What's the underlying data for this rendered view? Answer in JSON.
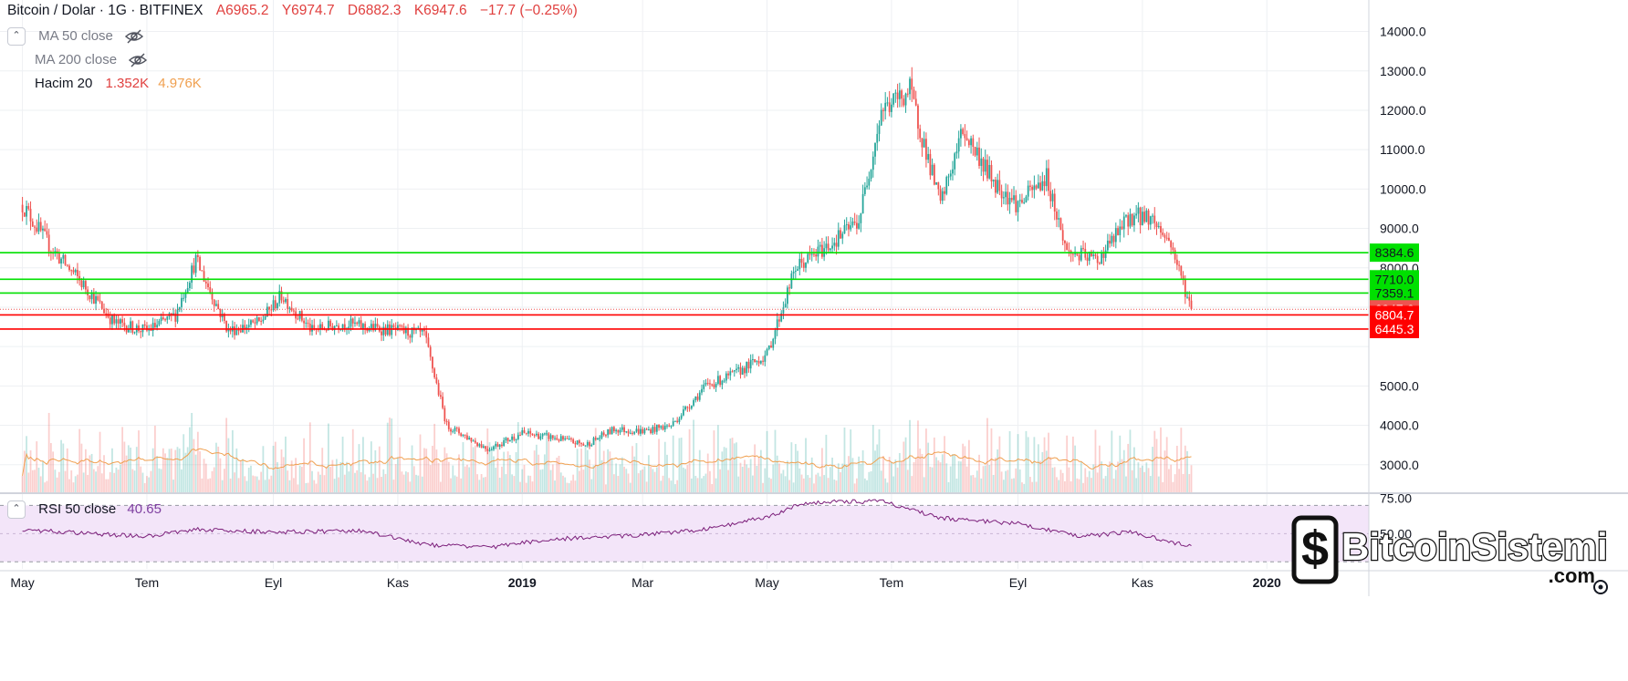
{
  "header": {
    "symbol": "Bitcoin / Dolar · 1G · BITFINEX",
    "open": "A6965.2",
    "high": "Y6974.7",
    "low": "D6882.3",
    "close": "K6947.6",
    "change": "−17.7 (−0.25%)"
  },
  "indicators": [
    {
      "name": "MA 50 close",
      "hidden_icon": "eye-off-icon"
    },
    {
      "name": "MA 200 close",
      "hidden_icon": "eye-off-icon"
    }
  ],
  "volume_legend": {
    "name": "Hacim 20",
    "value": "1.352K",
    "ma_value": "4.976K"
  },
  "rsi_legend": {
    "name": "RSI 50 close",
    "value": "40.65"
  },
  "colors": {
    "up": "#26a69a",
    "down": "#ef5350",
    "support_line": "#00e000",
    "resistance_line": "#ff0000",
    "rsi_line": "#7b1e7a",
    "rsi_band": "#f3e5f9",
    "volume_ma": "#f0a050"
  },
  "watermark": {
    "brand": "BitcoinSistemi",
    "suffix": ".com",
    "logo_icon": "bitcoin-logo-icon"
  },
  "chart_data": [
    {
      "type": "candlestick",
      "title": "",
      "x": [
        "2018-05-01",
        "2018-05-15",
        "2018-06-01",
        "2018-06-15",
        "2018-07-01",
        "2018-07-15",
        "2018-07-25",
        "2018-08-10",
        "2018-08-25",
        "2018-09-05",
        "2018-09-20",
        "2018-10-05",
        "2018-10-15",
        "2018-11-01",
        "2018-11-14",
        "2018-11-25",
        "2018-12-15",
        "2019-01-01",
        "2019-01-15",
        "2019-02-01",
        "2019-02-15",
        "2019-03-01",
        "2019-03-15",
        "2019-04-01",
        "2019-04-15",
        "2019-05-01",
        "2019-05-15",
        "2019-06-01",
        "2019-06-15",
        "2019-06-26",
        "2019-07-10",
        "2019-07-25",
        "2019-08-05",
        "2019-08-20",
        "2019-09-01",
        "2019-09-15",
        "2019-09-25",
        "2019-10-10",
        "2019-10-26",
        "2019-11-05",
        "2019-11-15",
        "2019-11-25"
      ],
      "close": [
        9600,
        8500,
        7500,
        6600,
        6400,
        6800,
        8200,
        6400,
        6600,
        7300,
        6400,
        6600,
        6500,
        6400,
        6300,
        4000,
        3400,
        3800,
        3700,
        3500,
        3900,
        3850,
        4000,
        5000,
        5300,
        5800,
        8000,
        8600,
        9200,
        12000,
        12500,
        9600,
        11500,
        10200,
        9600,
        10300,
        8400,
        8200,
        9300,
        9300,
        8600,
        6947.6
      ],
      "price_levels": [
        8384.6,
        7710.0,
        7359.1,
        6947.6,
        6804.7,
        6445.3
      ],
      "support_levels": [
        8384.6,
        7710.0,
        7359.1
      ],
      "resistance_levels": [
        6804.7,
        6445.3
      ],
      "last_price": 6947.6,
      "y_ticks": [
        3000,
        4000,
        5000,
        6000,
        7000,
        8000,
        9000,
        10000,
        11000,
        12000,
        13000,
        14000
      ],
      "y_tick_labels": [
        "3000.0",
        "4000.0",
        "5000.0",
        "",
        "",
        "8000.0",
        "9000.0",
        "10000.0",
        "11000.0",
        "12000.0",
        "13000.0",
        "14000.0"
      ],
      "x_ticks": [
        {
          "date": "2018-05-01",
          "label": "May"
        },
        {
          "date": "2018-07-01",
          "label": "Tem"
        },
        {
          "date": "2018-09-01",
          "label": "Eyl"
        },
        {
          "date": "2018-11-01",
          "label": "Kas"
        },
        {
          "date": "2019-01-01",
          "label": "2019"
        },
        {
          "date": "2019-03-01",
          "label": "Mar"
        },
        {
          "date": "2019-05-01",
          "label": "May"
        },
        {
          "date": "2019-07-01",
          "label": "Tem"
        },
        {
          "date": "2019-09-01",
          "label": "Eyl"
        },
        {
          "date": "2019-11-01",
          "label": "Kas"
        },
        {
          "date": "2020-01-01",
          "label": "2020"
        }
      ],
      "ylim": [
        2300,
        14800
      ],
      "grid": true
    },
    {
      "type": "line",
      "name": "RSI 50 close",
      "x": [
        "2018-05-01",
        "2018-06-01",
        "2018-07-01",
        "2018-07-25",
        "2018-09-01",
        "2018-10-15",
        "2018-11-15",
        "2018-12-15",
        "2019-01-15",
        "2019-03-01",
        "2019-04-01",
        "2019-05-01",
        "2019-05-20",
        "2019-06-26",
        "2019-07-25",
        "2019-09-01",
        "2019-10-01",
        "2019-10-26",
        "2019-11-25"
      ],
      "values": [
        53,
        50,
        48,
        53,
        51,
        52,
        42,
        40,
        46,
        49,
        53,
        62,
        72,
        73,
        61,
        57,
        48,
        51,
        40.65
      ],
      "y_ticks": [
        50,
        75
      ],
      "y_tick_labels": [
        "50.00",
        "75.00"
      ],
      "band": [
        30,
        70
      ],
      "ylim": [
        25,
        78
      ]
    }
  ]
}
